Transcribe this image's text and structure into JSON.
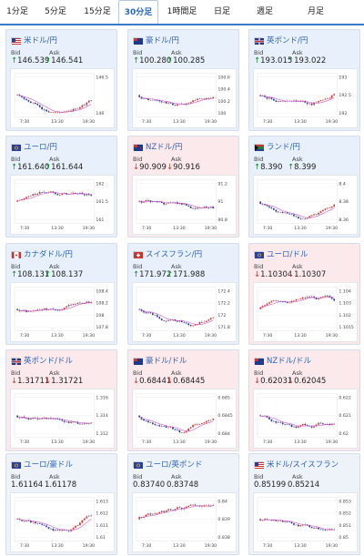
{
  "tabs": [
    {
      "label": "1分足",
      "active": false
    },
    {
      "label": "5分足",
      "active": false
    },
    {
      "label": "15分足",
      "active": false
    },
    {
      "label": "30分足",
      "active": true
    },
    {
      "label": "1時間足",
      "active": false
    },
    {
      "label": "日足",
      "active": false
    },
    {
      "label": "週足",
      "active": false
    },
    {
      "label": "月足",
      "active": false
    }
  ],
  "bid_label": "Bid",
  "ask_label": "Ask",
  "colors": {
    "up": "#e8f1fb",
    "down": "#fbe9ec",
    "accent": "#2f63b8",
    "candle_up": "#d23b3b",
    "candle_down": "#2a3c9a",
    "ma": "#cc55cc"
  },
  "cards": [
    {
      "pair": "米ドル/円",
      "flag": "us",
      "bid": "146.539",
      "ask": "146.541",
      "arrow": "↑",
      "trend": "up",
      "yticks": [
        "146.5",
        "146"
      ],
      "xticks": [
        "7:30",
        "13:30",
        "19:30"
      ]
    },
    {
      "pair": "豪ドル/円",
      "flag": "au",
      "bid": "100.280",
      "ask": "100.285",
      "arrow": "↑",
      "trend": "up",
      "yticks": [
        "100.6",
        "100.4",
        "100.2",
        "100"
      ],
      "xticks": [
        "7:30",
        "13:30",
        "19:30"
      ]
    },
    {
      "pair": "英ポンド/円",
      "flag": "gb",
      "bid": "193.015",
      "ask": "193.022",
      "arrow": "↑",
      "trend": "up",
      "yticks": [
        "193",
        "192.5",
        "192"
      ],
      "xticks": [
        "7:30",
        "13:30",
        "19:30"
      ]
    },
    {
      "pair": "ユーロ/円",
      "flag": "eu",
      "bid": "161.640",
      "ask": "161.644",
      "arrow": "↑",
      "trend": "up",
      "yticks": [
        "162",
        "161.5",
        "161"
      ],
      "xticks": [
        "7:30",
        "13:30",
        "19:30"
      ]
    },
    {
      "pair": "NZドル/円",
      "flag": "nz",
      "bid": "90.909",
      "ask": "90.916",
      "arrow": "↓",
      "trend": "down",
      "yticks": [
        "91.2",
        "91",
        "90.8"
      ],
      "xticks": [
        "7:30",
        "13:30",
        "19:30"
      ]
    },
    {
      "pair": "ランド/円",
      "flag": "za",
      "bid": "8.390",
      "ask": "8.399",
      "arrow": "↑",
      "trend": "up",
      "yticks": [
        "8.4",
        "8.38",
        "8.36"
      ],
      "xticks": [
        "7:30",
        "13:30",
        "19:30"
      ]
    },
    {
      "pair": "カナダドル/円",
      "flag": "ca",
      "bid": "108.131",
      "ask": "108.137",
      "arrow": "↑",
      "trend": "up",
      "yticks": [
        "108.4",
        "108.2",
        "108",
        "107.8"
      ],
      "xticks": [
        "7:30",
        "13:30",
        "19:30"
      ]
    },
    {
      "pair": "スイスフラン/円",
      "flag": "ch",
      "bid": "171.972",
      "ask": "171.988",
      "arrow": "↑",
      "trend": "up",
      "yticks": [
        "172.4",
        "172.2",
        "172",
        "171.8"
      ],
      "xticks": [
        "7:30",
        "13:30",
        "19:30"
      ]
    },
    {
      "pair": "ユーロ/ドル",
      "flag": "eu",
      "bid": "1.10304",
      "ask": "1.10307",
      "arrow": "↓",
      "trend": "down",
      "yticks": [
        "1.104",
        "1.103",
        "1.102",
        "1.1015"
      ],
      "xticks": [
        "7:30",
        "13:30",
        "19:30"
      ]
    },
    {
      "pair": "英ポンド/ドル",
      "flag": "gb",
      "bid": "1.31711",
      "ask": "1.31721",
      "arrow": "↓",
      "trend": "down",
      "yticks": [
        "1.316",
        "1.314",
        "1.312"
      ],
      "xticks": [
        "7:30",
        "13:30",
        "19:30"
      ]
    },
    {
      "pair": "豪ドル/ドル",
      "flag": "au",
      "bid": "0.68441",
      "ask": "0.68445",
      "arrow": "↓",
      "trend": "down",
      "yticks": [
        "0.685",
        "0.6845",
        "0.684"
      ],
      "xticks": [
        "7:30",
        "13:30",
        "19:30"
      ]
    },
    {
      "pair": "NZドル/ドル",
      "flag": "nz",
      "bid": "0.62031",
      "ask": "0.62045",
      "arrow": "↓",
      "trend": "down",
      "yticks": [
        "0.622",
        "0.621",
        "0.62"
      ],
      "xticks": [
        "7:30",
        "13:30",
        "19:30"
      ]
    },
    {
      "pair": "ユーロ/豪ドル",
      "flag": "eu",
      "bid": "1.61164",
      "ask": "1.61178",
      "arrow": "",
      "trend": "neutral",
      "yticks": [
        "1.613",
        "1.612",
        "1.611",
        "1.61"
      ],
      "xticks": [
        "7:30",
        "13:30",
        "19:30"
      ]
    },
    {
      "pair": "ユーロ/英ポンド",
      "flag": "eu",
      "bid": "0.83740",
      "ask": "0.83748",
      "arrow": "",
      "trend": "neutral",
      "yticks": [
        "0.84",
        "0.839",
        "0.838"
      ],
      "xticks": [
        "7:30",
        "13:30",
        "19:30"
      ]
    },
    {
      "pair": "米ドル/スイスフラン",
      "flag": "us",
      "bid": "0.85199",
      "ask": "0.85214",
      "arrow": "",
      "trend": "neutral",
      "yticks": [
        "0.853",
        "0.852",
        "0.851",
        "0.85"
      ],
      "xticks": [
        "7:30",
        "13:30",
        "19:30"
      ]
    }
  ]
}
